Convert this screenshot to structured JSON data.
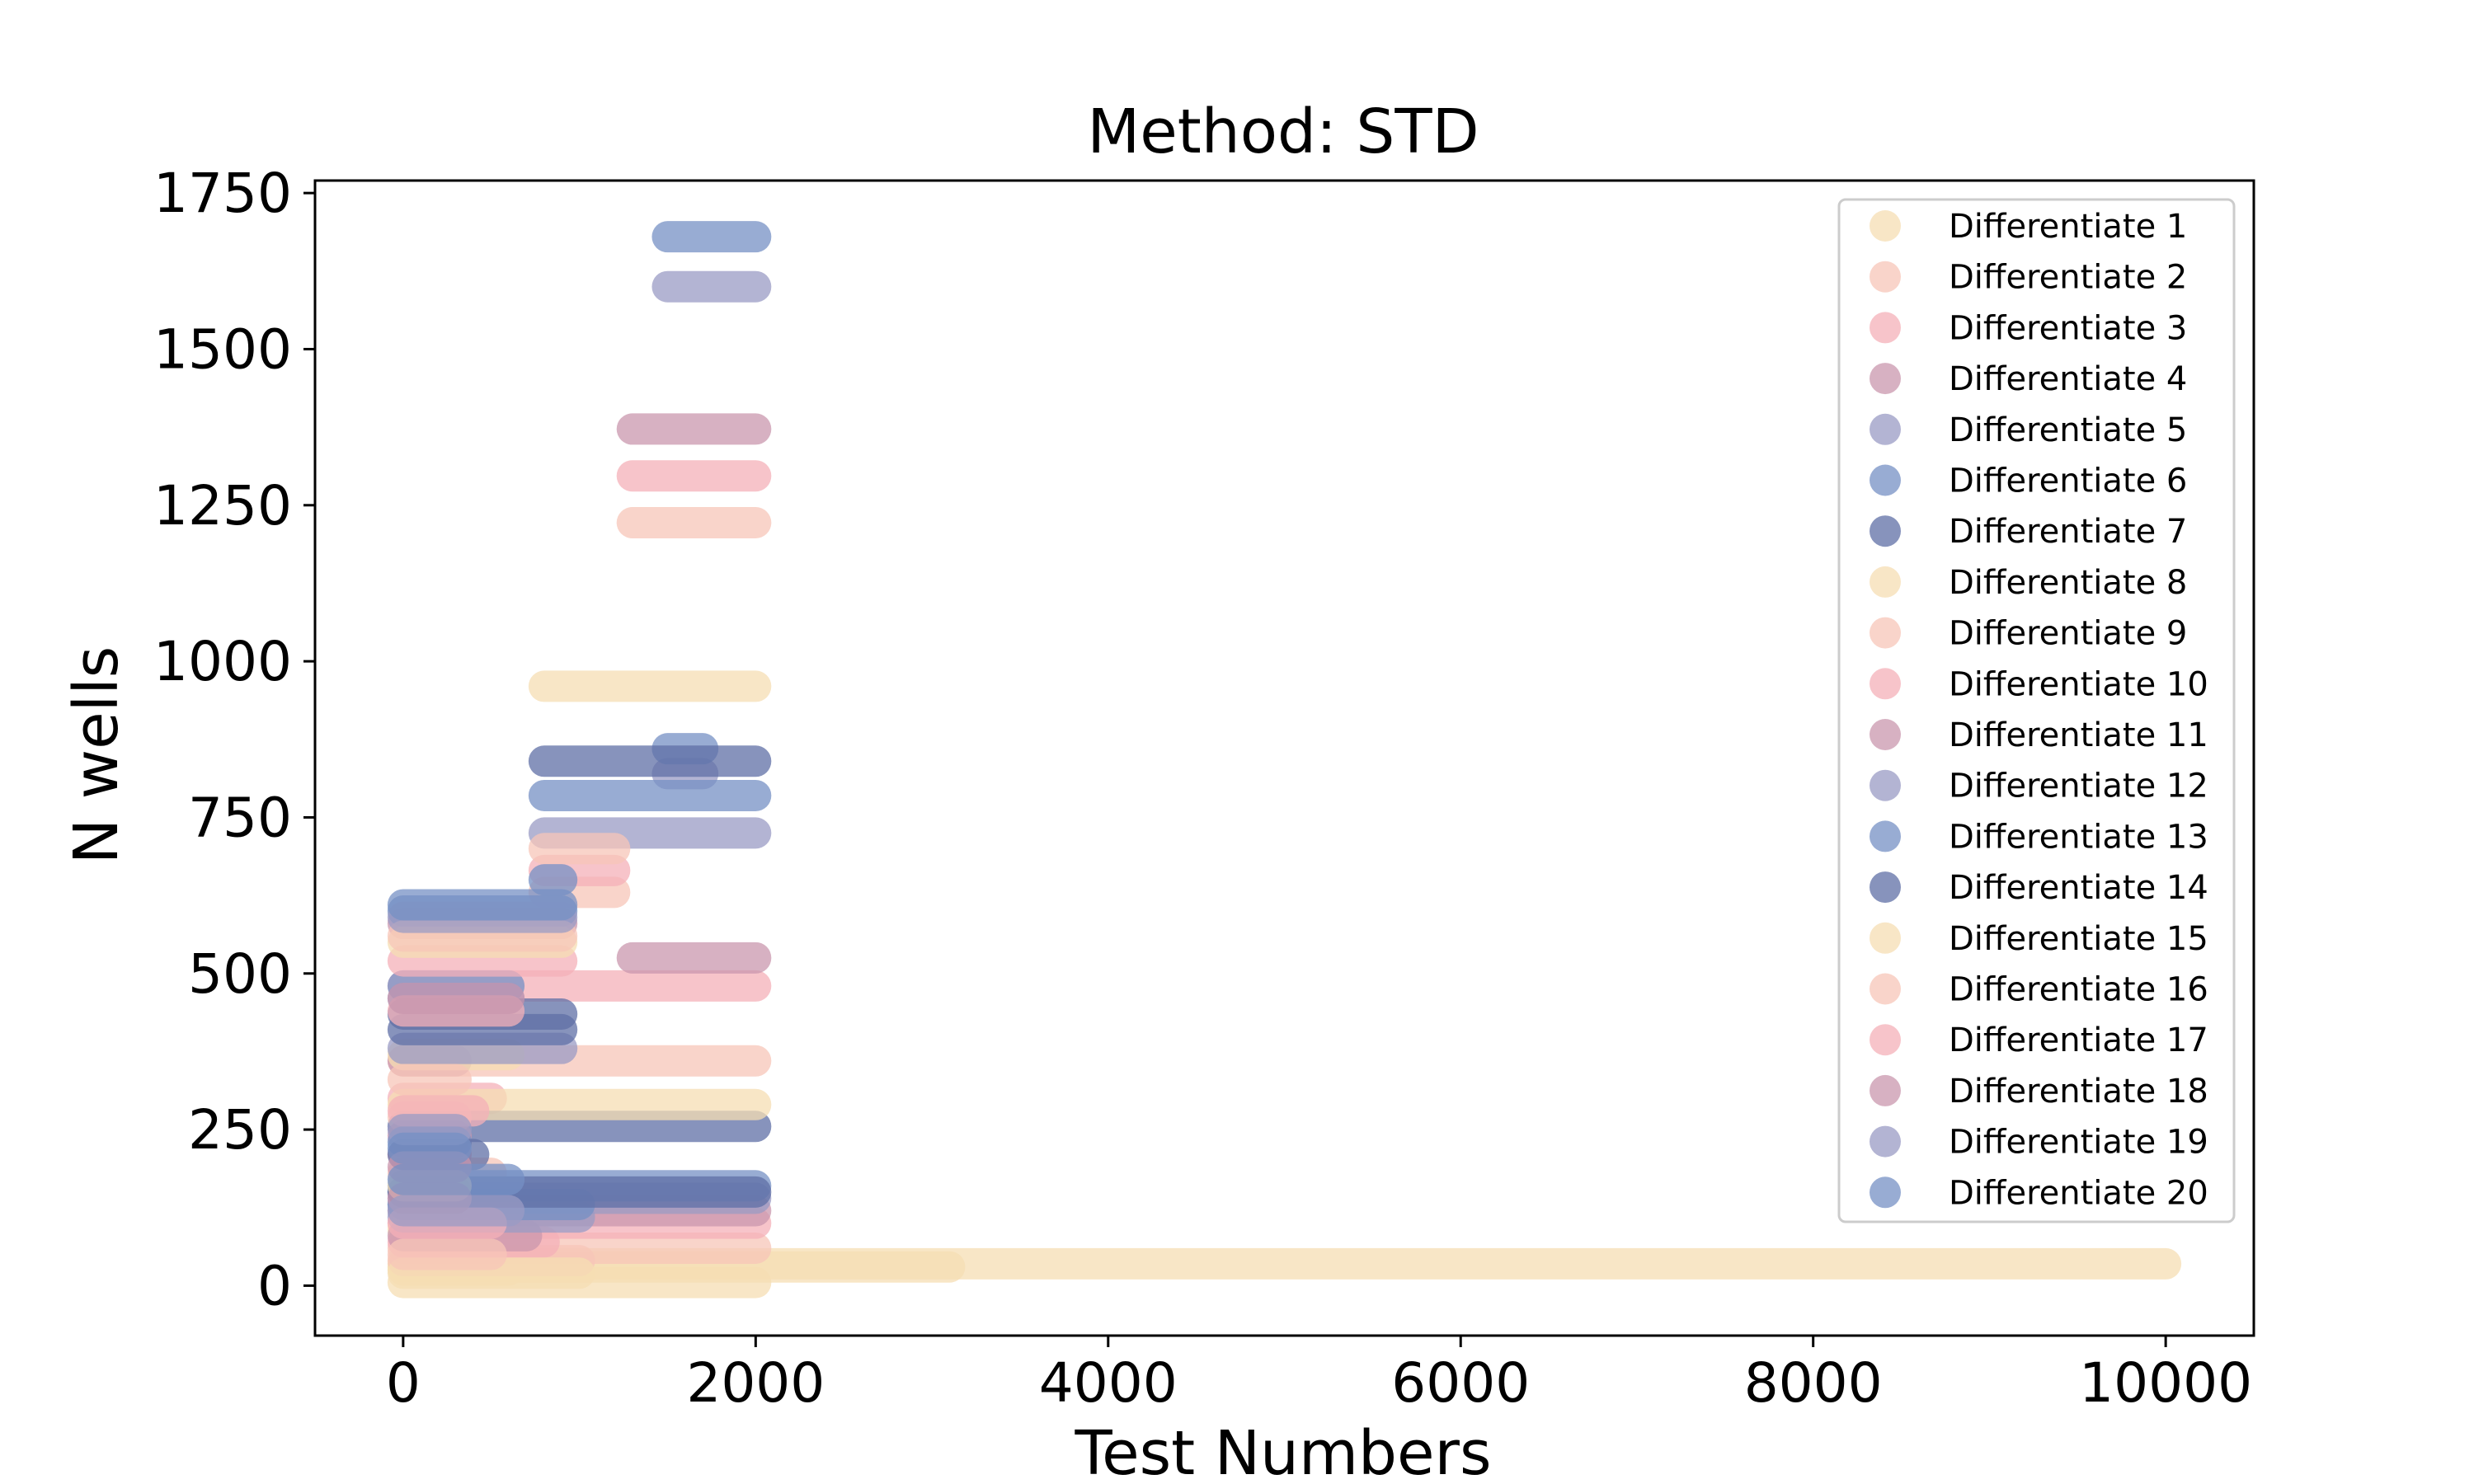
{
  "chart_data": {
    "type": "scatter",
    "title": "Method: STD",
    "xlabel": "Test Numbers",
    "ylabel": "N wells",
    "xlim": [
      -500,
      10500
    ],
    "ylim": [
      -80,
      1770
    ],
    "xticks": [
      0,
      2000,
      4000,
      6000,
      8000,
      10000
    ],
    "yticks": [
      0,
      250,
      500,
      750,
      1000,
      1250,
      1500,
      1750
    ],
    "xtick_labels": [
      "0",
      "2000",
      "4000",
      "6000",
      "8000",
      "10000"
    ],
    "ytick_labels": [
      "0",
      "250",
      "500",
      "750",
      "1000",
      "1250",
      "1500",
      "1750"
    ],
    "grid": false,
    "legend_position": "top-right",
    "marker_alpha": 0.75,
    "series": [
      {
        "name": "Differentiate 1",
        "color": "#f5deb3",
        "segments": [
          [
            0,
            2000,
            5
          ],
          [
            0,
            600,
            25
          ],
          [
            0,
            10000,
            35
          ],
          [
            0,
            3100,
            30
          ]
        ]
      },
      {
        "name": "Differentiate 2",
        "color": "#f7c6b8",
        "segments": [
          [
            0,
            2000,
            60
          ],
          [
            0,
            2000,
            360
          ],
          [
            1300,
            2000,
            1222
          ],
          [
            800,
            1200,
            630
          ],
          [
            0,
            500,
            180
          ]
        ]
      },
      {
        "name": "Differentiate 3",
        "color": "#f4b0b8",
        "segments": [
          [
            0,
            2000,
            100
          ],
          [
            0,
            2000,
            480
          ],
          [
            1300,
            2000,
            1297
          ],
          [
            800,
            1200,
            665
          ],
          [
            0,
            500,
            300
          ]
        ]
      },
      {
        "name": "Differentiate 4",
        "color": "#c997ae",
        "segments": [
          [
            0,
            2000,
            120
          ],
          [
            1300,
            2000,
            525
          ],
          [
            1300,
            2000,
            1372
          ],
          [
            0,
            300,
            360
          ]
        ]
      },
      {
        "name": "Differentiate 5",
        "color": "#9a9bc4",
        "segments": [
          [
            0,
            2000,
            140
          ],
          [
            800,
            2000,
            725
          ],
          [
            1500,
            2000,
            1600
          ],
          [
            1500,
            1700,
            820
          ],
          [
            0,
            600,
            460
          ]
        ]
      },
      {
        "name": "Differentiate 6",
        "color": "#7690c4",
        "segments": [
          [
            0,
            2000,
            160
          ],
          [
            800,
            2000,
            785
          ],
          [
            1500,
            2000,
            1680
          ],
          [
            1500,
            1700,
            860
          ],
          [
            0,
            600,
            480
          ]
        ]
      },
      {
        "name": "Differentiate 7",
        "color": "#5f6fa6",
        "segments": [
          [
            0,
            2000,
            255
          ],
          [
            800,
            2000,
            840
          ],
          [
            0,
            900,
            435
          ],
          [
            0,
            300,
            150
          ]
        ]
      },
      {
        "name": "Differentiate 8",
        "color": "#f5deb3",
        "segments": [
          [
            0,
            2000,
            290
          ],
          [
            800,
            2000,
            960
          ],
          [
            0,
            600,
            370
          ],
          [
            0,
            300,
            90
          ]
        ]
      },
      {
        "name": "Differentiate 9",
        "color": "#f7c6b8",
        "segments": [
          [
            0,
            1000,
            40
          ],
          [
            800,
            1200,
            700
          ],
          [
            0,
            300,
            270
          ]
        ]
      },
      {
        "name": "Differentiate 10",
        "color": "#f4b0b8",
        "segments": [
          [
            0,
            800,
            70
          ],
          [
            0,
            900,
            520
          ],
          [
            0,
            300,
            210
          ]
        ]
      },
      {
        "name": "Differentiate 11",
        "color": "#c997ae",
        "segments": [
          [
            0,
            700,
            80
          ],
          [
            0,
            900,
            580
          ],
          [
            0,
            300,
            240
          ]
        ]
      },
      {
        "name": "Differentiate 12",
        "color": "#9a9bc4",
        "segments": [
          [
            0,
            1000,
            110
          ],
          [
            0,
            900,
            380
          ],
          [
            0,
            300,
            130
          ]
        ]
      },
      {
        "name": "Differentiate 13",
        "color": "#7690c4",
        "segments": [
          [
            0,
            1000,
            130
          ],
          [
            800,
            900,
            650
          ],
          [
            0,
            900,
            600
          ],
          [
            0,
            300,
            230
          ]
        ]
      },
      {
        "name": "Differentiate 14",
        "color": "#5f6fa6",
        "segments": [
          [
            0,
            2000,
            150
          ],
          [
            0,
            900,
            410
          ],
          [
            0,
            400,
            210
          ]
        ]
      },
      {
        "name": "Differentiate 15",
        "color": "#f5deb3",
        "segments": [
          [
            0,
            1000,
            20
          ],
          [
            0,
            900,
            550
          ],
          [
            0,
            300,
            160
          ]
        ]
      },
      {
        "name": "Differentiate 16",
        "color": "#f7c6b8",
        "segments": [
          [
            0,
            500,
            50
          ],
          [
            0,
            900,
            560
          ],
          [
            0,
            300,
            330
          ]
        ]
      },
      {
        "name": "Differentiate 17",
        "color": "#f4b0b8",
        "segments": [
          [
            0,
            500,
            100
          ],
          [
            0,
            600,
            440
          ],
          [
            0,
            400,
            280
          ]
        ]
      },
      {
        "name": "Differentiate 18",
        "color": "#c997ae",
        "segments": [
          [
            0,
            300,
            140
          ],
          [
            0,
            600,
            460
          ],
          [
            0,
            300,
            190
          ]
        ]
      },
      {
        "name": "Differentiate 19",
        "color": "#9a9bc4",
        "segments": [
          [
            0,
            600,
            120
          ],
          [
            0,
            900,
            590
          ],
          [
            0,
            300,
            250
          ]
        ]
      },
      {
        "name": "Differentiate 20",
        "color": "#7690c4",
        "segments": [
          [
            0,
            600,
            170
          ],
          [
            0,
            900,
            610
          ],
          [
            0,
            300,
            220
          ]
        ]
      }
    ]
  }
}
